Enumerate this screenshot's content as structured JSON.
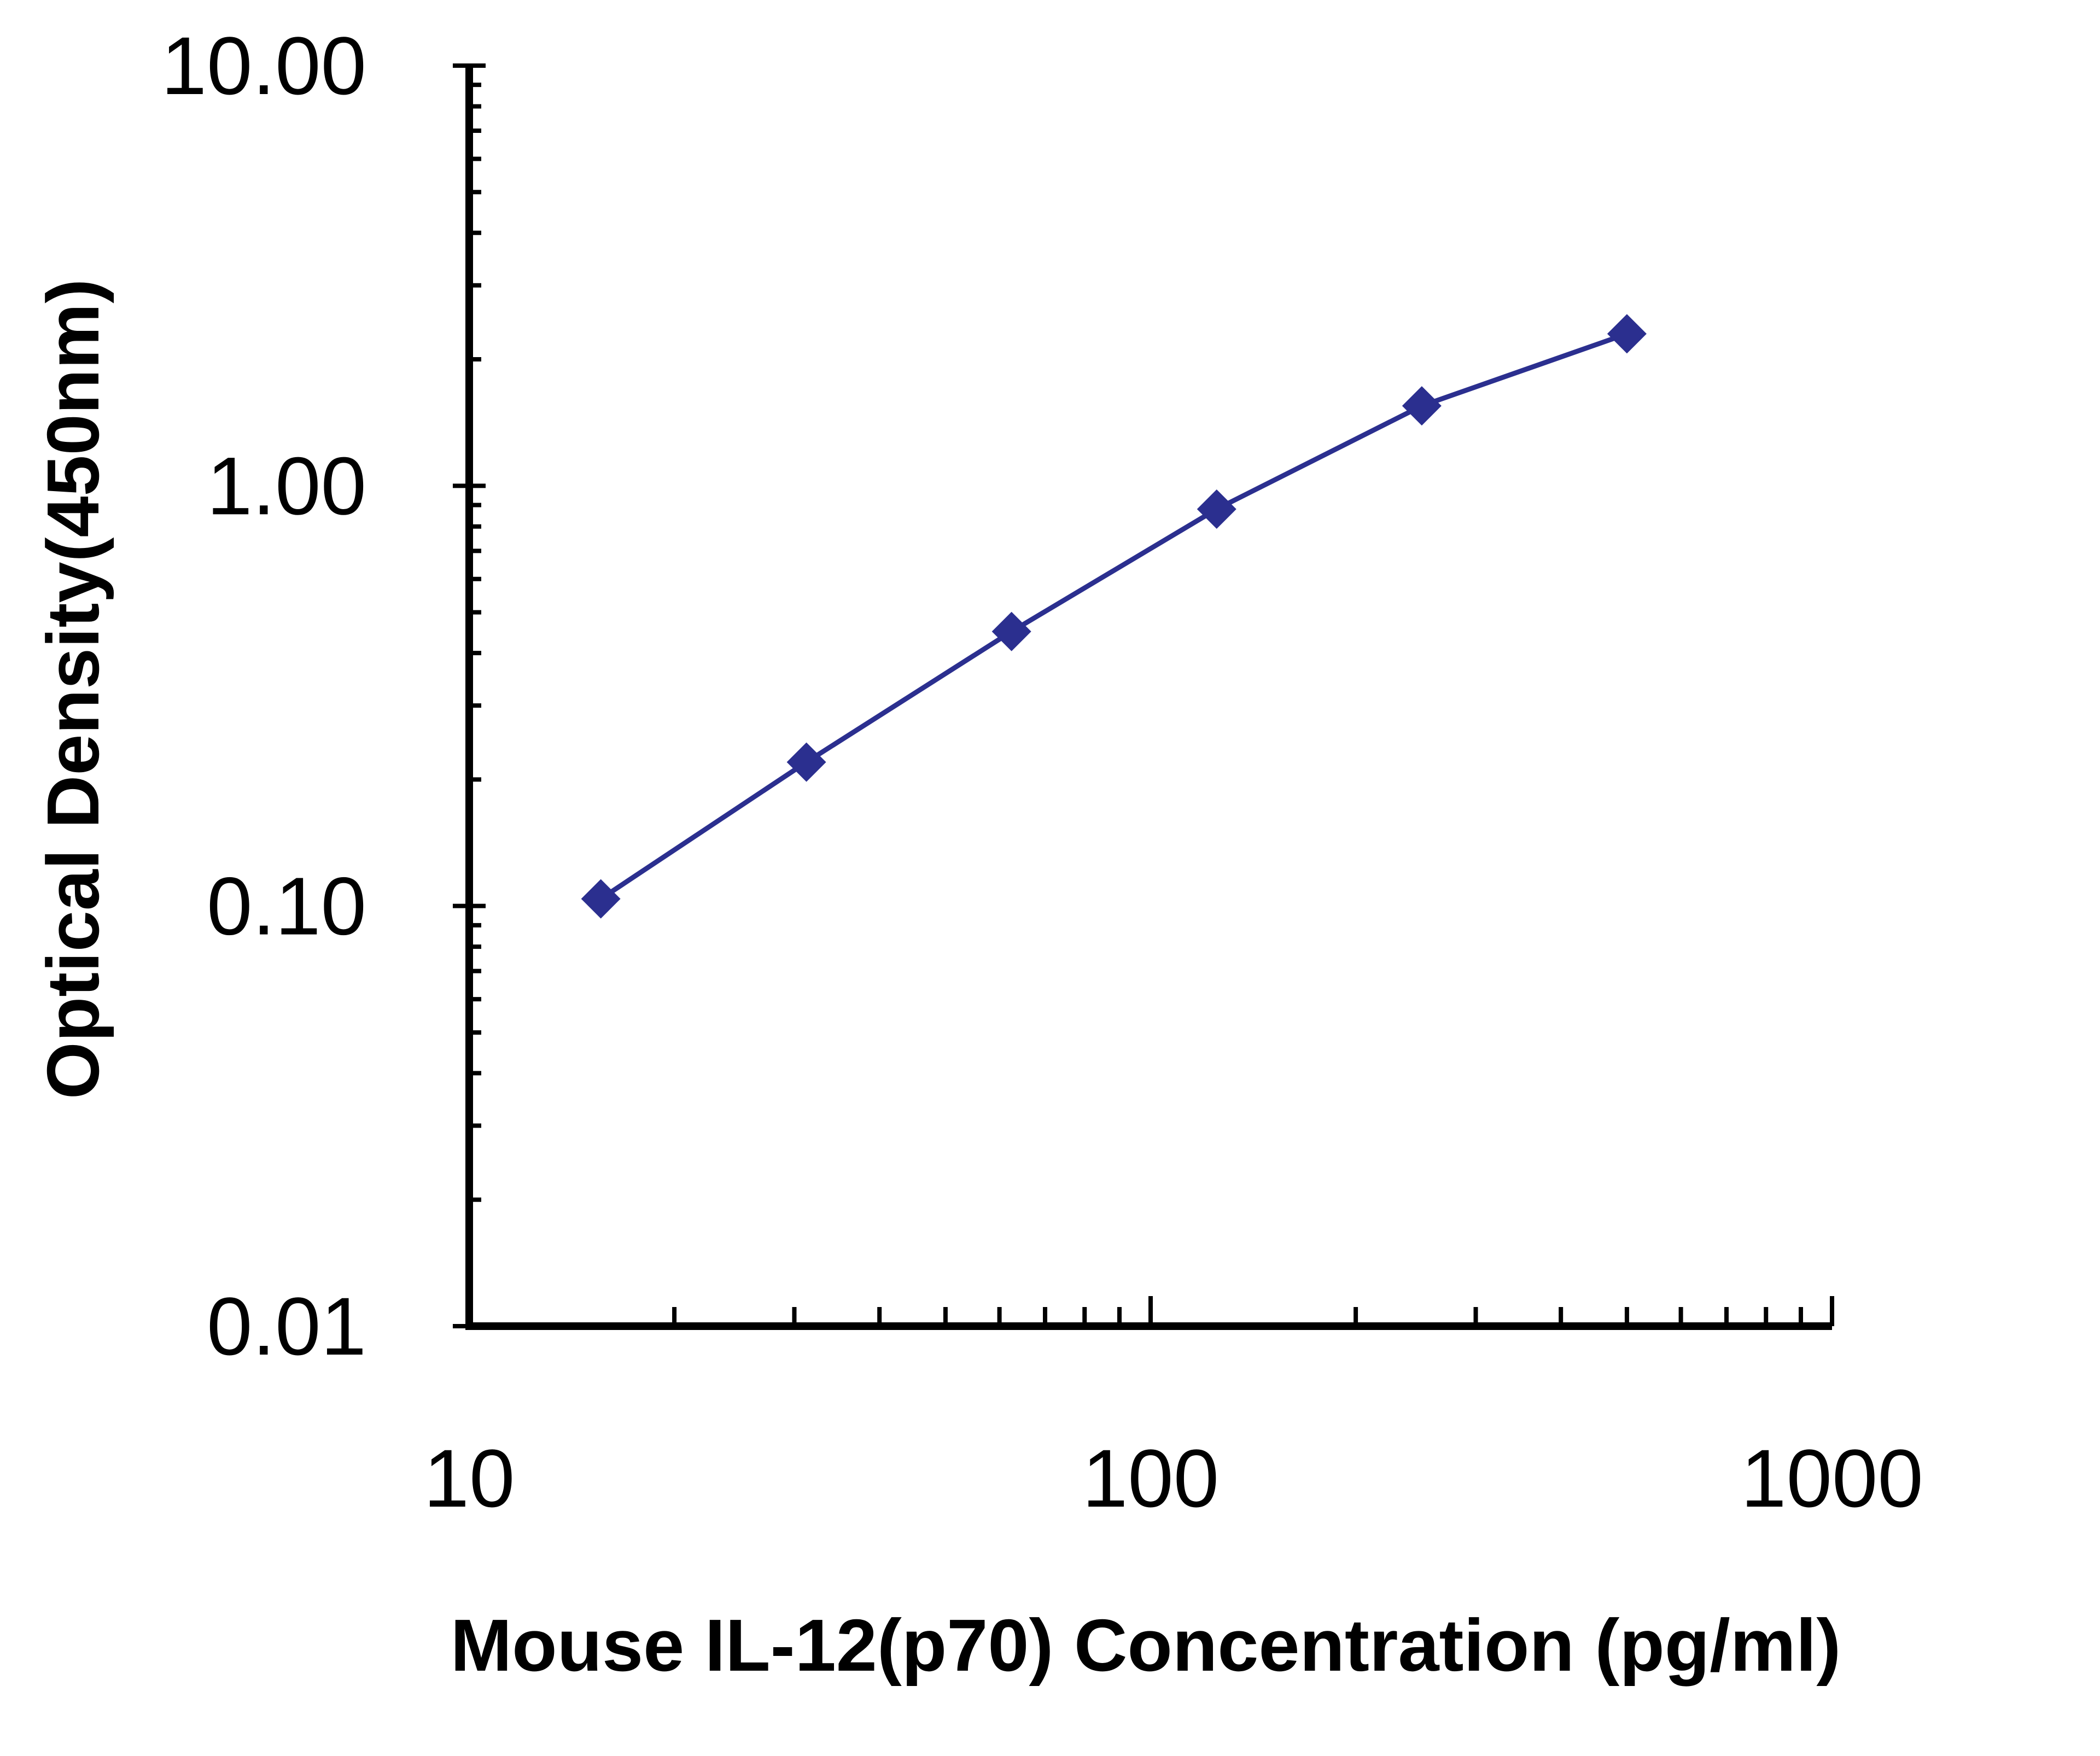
{
  "chart_data": {
    "type": "line",
    "title": "",
    "xlabel": "Mouse IL-12(p70) Concentration (pg/ml)",
    "ylabel": "Optical Density(450nm)",
    "x_scale": "log",
    "y_scale": "log",
    "xlim": [
      10,
      1000
    ],
    "ylim": [
      0.01,
      10
    ],
    "x_ticks": [
      {
        "value": 10,
        "label": "10"
      },
      {
        "value": 100,
        "label": "100"
      },
      {
        "value": 1000,
        "label": "1000"
      }
    ],
    "y_ticks": [
      {
        "value": 0.01,
        "label": "0.01"
      },
      {
        "value": 0.1,
        "label": "0.10"
      },
      {
        "value": 1,
        "label": "1.00"
      },
      {
        "value": 10,
        "label": "10.00"
      }
    ],
    "grid": false,
    "legend": "none",
    "series": [
      {
        "color": "#2b2f8f",
        "marker": "diamond",
        "x": [
          15.6,
          31.25,
          62.5,
          125,
          250,
          500
        ],
        "y": [
          0.104,
          0.22,
          0.45,
          0.88,
          1.55,
          2.3
        ]
      }
    ]
  }
}
